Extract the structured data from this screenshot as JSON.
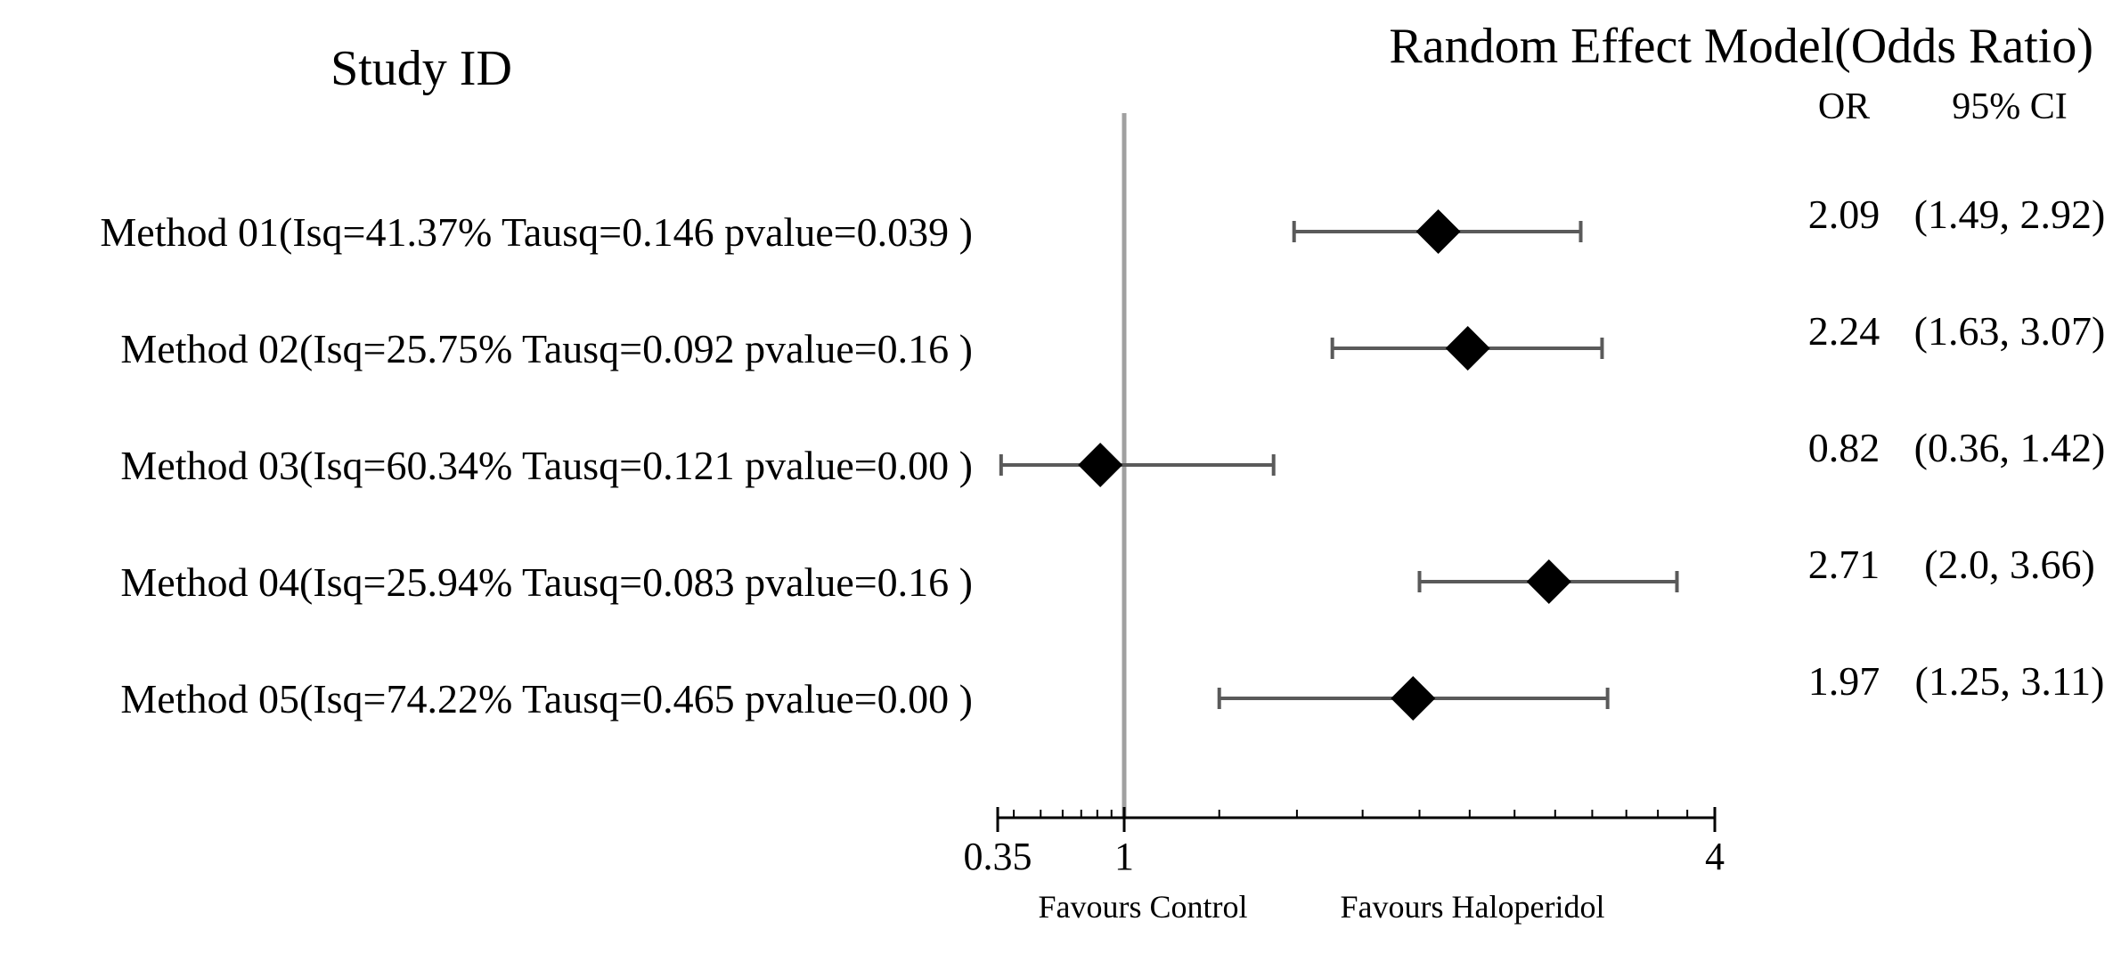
{
  "chart_data": {
    "type": "forest",
    "title": "Random Effect Model(Odds Ratio)",
    "study_header": "Study ID",
    "col_or_header": "OR",
    "col_ci_header": "95% CI",
    "favour_left": "Favours Control",
    "favour_right": "Favours Haloperidol",
    "xlim": [
      0.35,
      4
    ],
    "null_line": 1,
    "ticks": [
      {
        "value": 0.35,
        "label": "0.35"
      },
      {
        "value": 1,
        "label": "1"
      },
      {
        "value": 4,
        "label": "4"
      }
    ],
    "rows": [
      {
        "label": "Method 01(Isq=41.37% Tausq=0.146 pvalue=0.039 )",
        "or": 2.09,
        "lower": 1.49,
        "upper": 2.92,
        "or_text": "2.09",
        "ci_text": "(1.49, 2.92)"
      },
      {
        "label": "Method 02(Isq=25.75% Tausq=0.092 pvalue=0.16 )",
        "or": 2.24,
        "lower": 1.63,
        "upper": 3.07,
        "or_text": "2.24",
        "ci_text": "(1.63, 3.07)"
      },
      {
        "label": "Method 03(Isq=60.34% Tausq=0.121 pvalue=0.00 )",
        "or": 0.82,
        "lower": 0.36,
        "upper": 1.42,
        "or_text": "0.82",
        "ci_text": "(0.36, 1.42)"
      },
      {
        "label": "Method 04(Isq=25.94% Tausq=0.083 pvalue=0.16 )",
        "or": 2.71,
        "lower": 2.0,
        "upper": 3.66,
        "or_text": "2.71",
        "ci_text": "(2.0, 3.66)"
      },
      {
        "label": "Method 05(Isq=74.22% Tausq=0.465 pvalue=0.00 )",
        "or": 1.97,
        "lower": 1.25,
        "upper": 3.11,
        "or_text": "1.97",
        "ci_text": "(1.25, 3.11)"
      }
    ],
    "colors": {
      "marker": "#000000",
      "ci_line": "#5a5a5a",
      "null_line": "#a0a0a0",
      "axis": "#000000"
    }
  }
}
